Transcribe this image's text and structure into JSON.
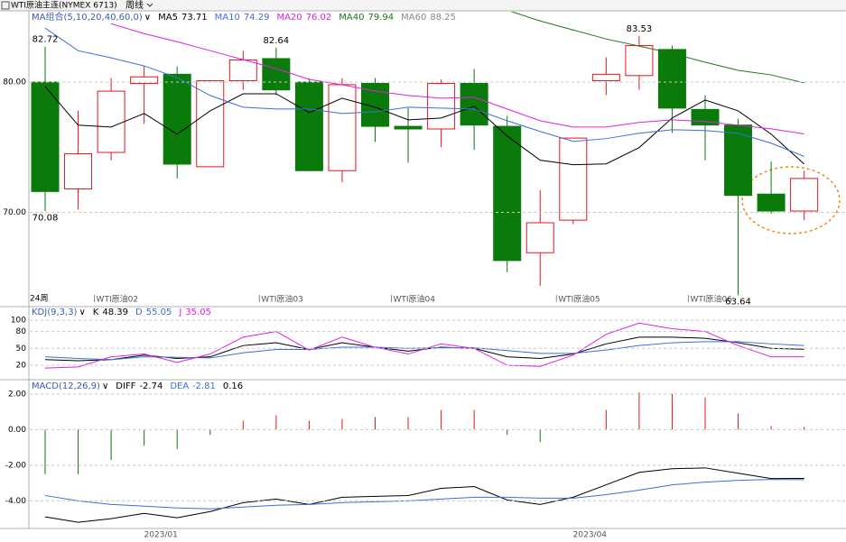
{
  "header": {
    "symbol": "WTI原油主连(NYMEX 6713)",
    "period": "周线"
  },
  "chart_data": [
    {
      "type": "candlestick",
      "title": "MA组合(5,10,20,40,60,0)",
      "period_label": "24周",
      "categories": [
        null,
        "WTI原油02",
        null,
        null,
        null,
        null,
        "WTI原油03",
        null,
        null,
        null,
        "WTI原油04",
        null,
        null,
        null,
        null,
        "WTI原油05",
        null,
        null,
        null,
        "WTI原油06",
        null,
        null,
        null,
        null
      ],
      "open": [
        80.0,
        71.8,
        74.6,
        79.9,
        80.6,
        73.5,
        80.1,
        81.8,
        80.0,
        73.2,
        79.9,
        76.6,
        76.4,
        79.9,
        76.6,
        66.9,
        69.4,
        80.1,
        80.5,
        82.5,
        77.9,
        76.7,
        71.4,
        70.1
      ],
      "high": [
        82.72,
        77.8,
        80.3,
        81.2,
        81.2,
        80.1,
        82.4,
        82.64,
        80.3,
        80.3,
        80.3,
        78.0,
        80.2,
        81.0,
        77.4,
        71.7,
        75.7,
        81.9,
        83.53,
        82.8,
        79.0,
        77.2,
        73.9,
        73.2
      ],
      "low": [
        70.08,
        70.2,
        74.0,
        76.8,
        72.6,
        73.5,
        79.4,
        79.0,
        73.2,
        72.3,
        75.4,
        73.8,
        75.0,
        74.8,
        65.4,
        64.36,
        69.1,
        79.0,
        79.4,
        76.1,
        74.0,
        63.64,
        69.9,
        69.4
      ],
      "close": [
        71.6,
        74.5,
        79.3,
        80.4,
        73.7,
        80.1,
        81.7,
        79.4,
        73.2,
        79.8,
        76.6,
        76.4,
        79.9,
        76.7,
        66.3,
        69.2,
        75.7,
        80.6,
        82.8,
        78.0,
        76.7,
        71.3,
        70.1,
        72.6
      ],
      "up_color": "#e8141a",
      "down_color": "#0a7a0a",
      "series": [
        {
          "name": "MA5",
          "last": 73.71,
          "color": "#000000",
          "values": [
            79.66,
            76.69,
            76.55,
            77.59,
            76.0,
            77.79,
            79.1,
            79.1,
            77.66,
            78.76,
            78.07,
            77.1,
            77.24,
            78.14,
            75.86,
            74.0,
            73.66,
            73.72,
            74.97,
            77.24,
            78.62,
            77.79,
            76.0,
            73.71
          ]
        },
        {
          "name": "MA10",
          "last": 74.29,
          "color": "#3a6fd8",
          "values": [
            84.14,
            82.41,
            81.86,
            81.24,
            80.34,
            78.97,
            78.07,
            77.93,
            77.93,
            77.59,
            77.72,
            78.07,
            78.0,
            77.93,
            77.03,
            76.21,
            75.45,
            75.66,
            76.07,
            76.34,
            76.28,
            76.07,
            75.31,
            74.29
          ]
        },
        {
          "name": "MA20",
          "last": 76.02,
          "color": "#e020e0",
          "values": [
            null,
            null,
            84.48,
            83.72,
            83.1,
            82.41,
            81.72,
            81.03,
            80.21,
            79.79,
            79.31,
            78.97,
            78.76,
            78.83,
            77.93,
            77.03,
            76.55,
            76.55,
            76.9,
            77.1,
            76.97,
            76.69,
            76.41,
            76.02
          ]
        },
        {
          "name": "MA40",
          "last": 79.94,
          "color": "#1a7a1a",
          "values": [
            null,
            null,
            null,
            null,
            null,
            null,
            null,
            null,
            null,
            null,
            null,
            null,
            null,
            null,
            85.52,
            84.69,
            84.0,
            83.31,
            82.76,
            82.21,
            81.52,
            80.9,
            80.55,
            79.94
          ]
        },
        {
          "name": "MA60",
          "last": 88.25,
          "color": "#888888"
        }
      ],
      "ylim": [
        62.9,
        85.4
      ],
      "yticks": [
        {
          "value": 80,
          "label": "80.00"
        },
        {
          "value": 70,
          "label": "70.00"
        }
      ],
      "grid": true
    },
    {
      "type": "line",
      "title": "KDJ(9,3,3)",
      "series": [
        {
          "name": "K",
          "last": 48.39,
          "color": "#000000",
          "values": [
            30,
            28,
            30,
            38,
            32,
            35,
            55,
            60,
            48,
            60,
            52,
            45,
            52,
            50,
            35,
            32,
            40,
            58,
            70,
            70,
            68,
            60,
            50,
            48.39
          ]
        },
        {
          "name": "D",
          "last": 55.05,
          "color": "#3a6fd8",
          "values": [
            35,
            32,
            30,
            35,
            34,
            33,
            42,
            48,
            48,
            52,
            52,
            50,
            51,
            51,
            46,
            41,
            41,
            47,
            55,
            60,
            62,
            62,
            58,
            55.05
          ]
        },
        {
          "name": "J",
          "last": 35.05,
          "color": "#e020e0",
          "values": [
            15,
            17,
            35,
            40,
            25,
            40,
            70,
            80,
            47,
            70,
            52,
            40,
            58,
            50,
            20,
            18,
            38,
            75,
            95,
            85,
            80,
            55,
            35,
            35.05
          ]
        }
      ],
      "ylim": [
        -4,
        121
      ],
      "yticks": [
        100,
        80,
        50,
        20
      ],
      "grid": true
    },
    {
      "type": "macd",
      "title": "MACD(12,26,9)",
      "categories": [
        null,
        null,
        null,
        null,
        "2023/01",
        null,
        null,
        null,
        null,
        null,
        null,
        null,
        null,
        null,
        null,
        null,
        null,
        "2023/04",
        null,
        null,
        null,
        null,
        null,
        null
      ],
      "series": [
        {
          "name": "DIFF",
          "last": -2.74,
          "color": "#000000",
          "values": [
            -4.9,
            -5.2,
            -5.0,
            -4.7,
            -4.95,
            -4.6,
            -4.1,
            -3.9,
            -4.2,
            -3.8,
            -3.75,
            -3.7,
            -3.3,
            -3.2,
            -3.95,
            -4.2,
            -3.8,
            -3.1,
            -2.4,
            -2.2,
            -2.15,
            -2.45,
            -2.75,
            -2.74
          ]
        },
        {
          "name": "DEA",
          "last": -2.81,
          "color": "#3a6fd8",
          "values": [
            -3.7,
            -4.0,
            -4.2,
            -4.3,
            -4.4,
            -4.45,
            -4.35,
            -4.25,
            -4.2,
            -4.1,
            -4.05,
            -4.0,
            -3.9,
            -3.8,
            -3.8,
            -3.85,
            -3.85,
            -3.65,
            -3.4,
            -3.1,
            -2.95,
            -2.85,
            -2.8,
            -2.81
          ]
        }
      ],
      "bars": {
        "last": 0.16,
        "up_color": "#e8141a",
        "down_color": "#0a7a0a",
        "values": [
          -2.5,
          -2.5,
          -1.7,
          -0.9,
          -1.1,
          -0.3,
          0.5,
          0.8,
          0.5,
          0.6,
          0.7,
          0.7,
          1.1,
          1.1,
          -0.3,
          -0.7,
          0.05,
          1.1,
          2.1,
          2.0,
          1.8,
          0.9,
          0.2,
          0.16
        ]
      },
      "ylim": [
        -5.5,
        2.7
      ],
      "yticks": [
        {
          "value": 2,
          "label": "2.00"
        },
        {
          "value": 0,
          "label": "0.00"
        },
        {
          "value": -2,
          "label": "-2.00"
        },
        {
          "value": -4,
          "label": "-4.00"
        }
      ],
      "grid": true
    }
  ]
}
